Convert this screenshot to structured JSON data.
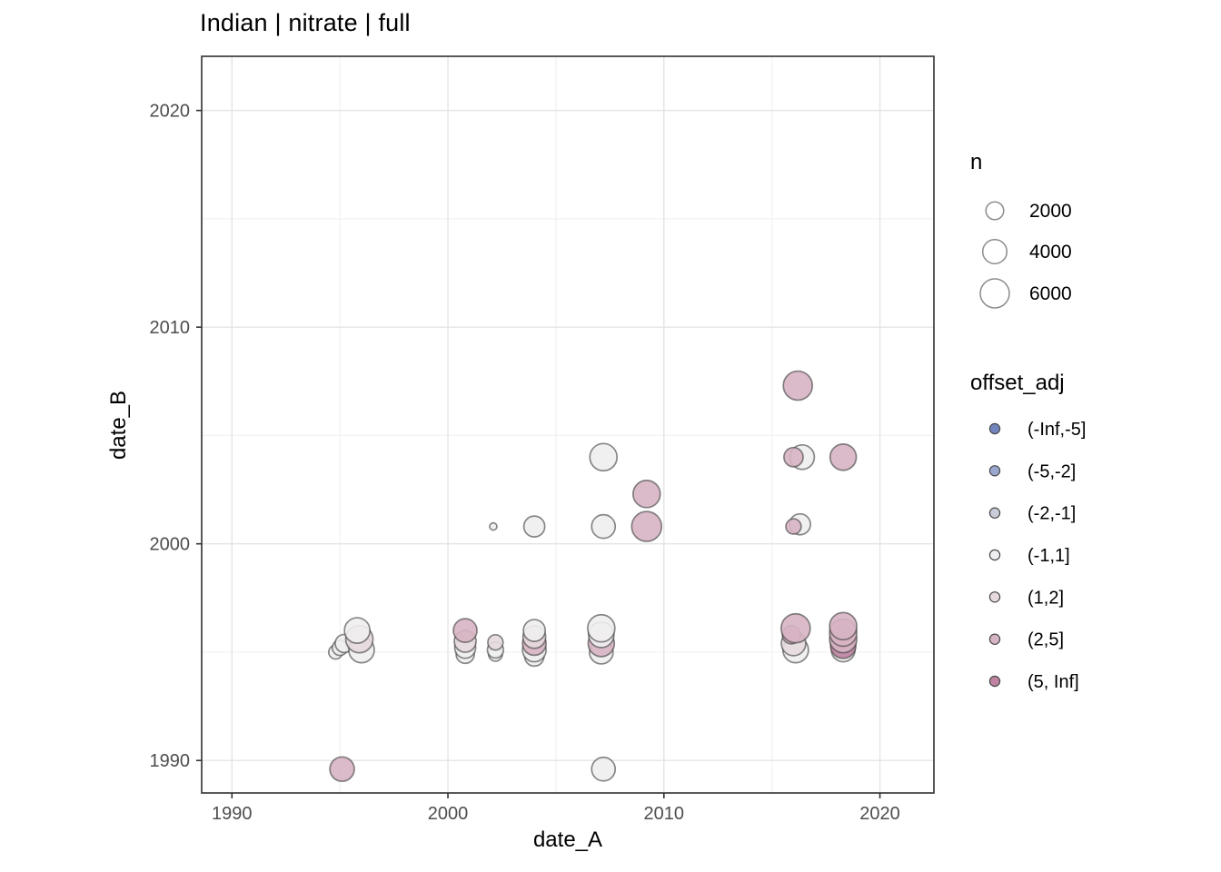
{
  "title": "Indian | nitrate | full",
  "axes": {
    "x_title": "date_A",
    "y_title": "date_B",
    "x_tick_labels": [
      "1990",
      "2000",
      "2010",
      "2020"
    ],
    "y_tick_labels": [
      "2020",
      "2010",
      "2000",
      "1990"
    ]
  },
  "legend_n": {
    "title": "n",
    "entries": [
      {
        "label": "2000",
        "n": 2000
      },
      {
        "label": "4000",
        "n": 4000
      },
      {
        "label": "6000",
        "n": 6000
      }
    ]
  },
  "legend_offset": {
    "title": "offset_adj",
    "entries": [
      {
        "label": "(-Inf,-5]",
        "color": "#7285bd"
      },
      {
        "label": "(-5,-2]",
        "color": "#9ba6ce"
      },
      {
        "label": "(-2,-1]",
        "color": "#c9cdd9"
      },
      {
        "label": "(-1,1]",
        "color": "#efeef0"
      },
      {
        "label": "(1,2]",
        "color": "#e5d9de"
      },
      {
        "label": "(2,5]",
        "color": "#d7b4c3"
      },
      {
        "label": "(5, Inf]",
        "color": "#bf82a1"
      }
    ]
  },
  "chart_data": {
    "type": "scatter",
    "subtype": "bubble",
    "title": "Indian | nitrate | full",
    "xlabel": "date_A",
    "ylabel": "date_B",
    "xlim": [
      1988.6,
      2022.5
    ],
    "ylim": [
      1988.5,
      2022.5
    ],
    "x_ticks": [
      1990,
      2000,
      2010,
      2020
    ],
    "y_ticks": [
      1990,
      2000,
      2010,
      2020
    ],
    "x_minor_ticks": [
      1995,
      2005,
      2015
    ],
    "y_minor_ticks": [
      1995,
      2005,
      2015
    ],
    "grid": true,
    "legend_position": "right",
    "size_variable": "n",
    "color_variable": "offset_adj",
    "bins": [
      "(-Inf,-5]",
      "(-5,-2]",
      "(-2,-1]",
      "(-1,1]",
      "(1,2]",
      "(2,5]",
      "(5, Inf]"
    ],
    "bin_colors": {
      "(-Inf,-5]": "#7285bd",
      "(-5,-2]": "#9ba6ce",
      "(-2,-1]": "#c9cdd9",
      "(-1,1]": "#efeef0",
      "(1,2]": "#e5d9de",
      "(2,5]": "#d7b4c3",
      "(5, Inf]": "#bf82a1"
    },
    "points": [
      {
        "x": 1994.8,
        "y": 1995.0,
        "n": 1100,
        "bin": "(-1,1]"
      },
      {
        "x": 1995.0,
        "y": 1995.2,
        "n": 1400,
        "bin": "(-1,1]"
      },
      {
        "x": 1995.2,
        "y": 1995.4,
        "n": 2100,
        "bin": "(-1,1]"
      },
      {
        "x": 1996.0,
        "y": 1995.1,
        "n": 4500,
        "bin": "(-1,1]"
      },
      {
        "x": 1995.9,
        "y": 1995.6,
        "n": 5200,
        "bin": "(1,2]"
      },
      {
        "x": 1995.8,
        "y": 1996.0,
        "n": 4500,
        "bin": "(-1,1]"
      },
      {
        "x": 1995.1,
        "y": 1989.6,
        "n": 4100,
        "bin": "(2,5]"
      },
      {
        "x": 2000.8,
        "y": 1994.9,
        "n": 2100,
        "bin": "(-1,1]"
      },
      {
        "x": 2000.8,
        "y": 1995.2,
        "n": 2900,
        "bin": "(-1,1]"
      },
      {
        "x": 2000.8,
        "y": 1995.5,
        "n": 3200,
        "bin": "(1,2]"
      },
      {
        "x": 2000.8,
        "y": 1996.0,
        "n": 3800,
        "bin": "(2,5]"
      },
      {
        "x": 2002.2,
        "y": 1994.9,
        "n": 1100,
        "bin": "(-1,1]"
      },
      {
        "x": 2002.2,
        "y": 1995.1,
        "n": 1600,
        "bin": "(-1,1]"
      },
      {
        "x": 2002.2,
        "y": 1995.45,
        "n": 1400,
        "bin": "(1,2]"
      },
      {
        "x": 2002.1,
        "y": 2000.8,
        "n": 200,
        "bin": "(-1,1]"
      },
      {
        "x": 2004.0,
        "y": 2000.8,
        "n": 2900,
        "bin": "(-1,1]"
      },
      {
        "x": 2004.0,
        "y": 1994.8,
        "n": 2400,
        "bin": "(-1,1]"
      },
      {
        "x": 2004.0,
        "y": 1995.1,
        "n": 3800,
        "bin": "(-1,1]"
      },
      {
        "x": 2004.0,
        "y": 1995.4,
        "n": 3800,
        "bin": "(2,5]"
      },
      {
        "x": 2004.0,
        "y": 1995.7,
        "n": 3500,
        "bin": "(1,2]"
      },
      {
        "x": 2004.0,
        "y": 1996.0,
        "n": 3200,
        "bin": "(-1,1]"
      },
      {
        "x": 2007.2,
        "y": 2004.0,
        "n": 5200,
        "bin": "(-1,1]"
      },
      {
        "x": 2007.2,
        "y": 2000.8,
        "n": 3800,
        "bin": "(-1,1]"
      },
      {
        "x": 2007.1,
        "y": 1995.0,
        "n": 3800,
        "bin": "(-1,1]"
      },
      {
        "x": 2007.1,
        "y": 1995.4,
        "n": 4800,
        "bin": "(2,5]"
      },
      {
        "x": 2007.1,
        "y": 1995.8,
        "n": 4500,
        "bin": "(-1,1]"
      },
      {
        "x": 2007.1,
        "y": 1996.1,
        "n": 5200,
        "bin": "(-1,1]"
      },
      {
        "x": 2007.2,
        "y": 1989.6,
        "n": 3800,
        "bin": "(-1,1]"
      },
      {
        "x": 2009.2,
        "y": 2002.3,
        "n": 5200,
        "bin": "(2,5]"
      },
      {
        "x": 2009.2,
        "y": 2000.8,
        "n": 6400,
        "bin": "(2,5]"
      },
      {
        "x": 2016.2,
        "y": 2007.3,
        "n": 6000,
        "bin": "(2,5]"
      },
      {
        "x": 2016.4,
        "y": 2004.0,
        "n": 4100,
        "bin": "(-1,1]"
      },
      {
        "x": 2016.0,
        "y": 2004.0,
        "n": 2400,
        "bin": "(2,5]"
      },
      {
        "x": 2016.3,
        "y": 2000.9,
        "n": 2900,
        "bin": "(-1,1]"
      },
      {
        "x": 2016.0,
        "y": 2000.8,
        "n": 1400,
        "bin": "(2,5]"
      },
      {
        "x": 2016.1,
        "y": 1995.1,
        "n": 4500,
        "bin": "(-1,1]"
      },
      {
        "x": 2016.0,
        "y": 1995.4,
        "n": 4100,
        "bin": "(1,2]"
      },
      {
        "x": 2015.9,
        "y": 1995.8,
        "n": 2100,
        "bin": "(2,5]"
      },
      {
        "x": 2016.1,
        "y": 1996.1,
        "n": 6000,
        "bin": "(2,5]"
      },
      {
        "x": 2018.3,
        "y": 2004.0,
        "n": 4800,
        "bin": "(2,5]"
      },
      {
        "x": 2018.3,
        "y": 1995.1,
        "n": 3800,
        "bin": "(-1,1]"
      },
      {
        "x": 2018.3,
        "y": 1995.3,
        "n": 4500,
        "bin": "(5, Inf]"
      },
      {
        "x": 2018.3,
        "y": 1995.6,
        "n": 5200,
        "bin": "(2,5]"
      },
      {
        "x": 2018.3,
        "y": 1995.9,
        "n": 5200,
        "bin": "(2,5]"
      },
      {
        "x": 2018.3,
        "y": 1996.2,
        "n": 5200,
        "bin": "(2,5]"
      }
    ]
  },
  "style": {
    "panel_border_color": "#3c3c3c",
    "grid_major_color": "#e4e4e4",
    "grid_minor_color": "#efefef",
    "tick_color": "#333333",
    "tick_label_color": "#4d4d4d",
    "point_stroke_color": "#404040",
    "size_key_stroke_color": "#8c8c8c"
  }
}
